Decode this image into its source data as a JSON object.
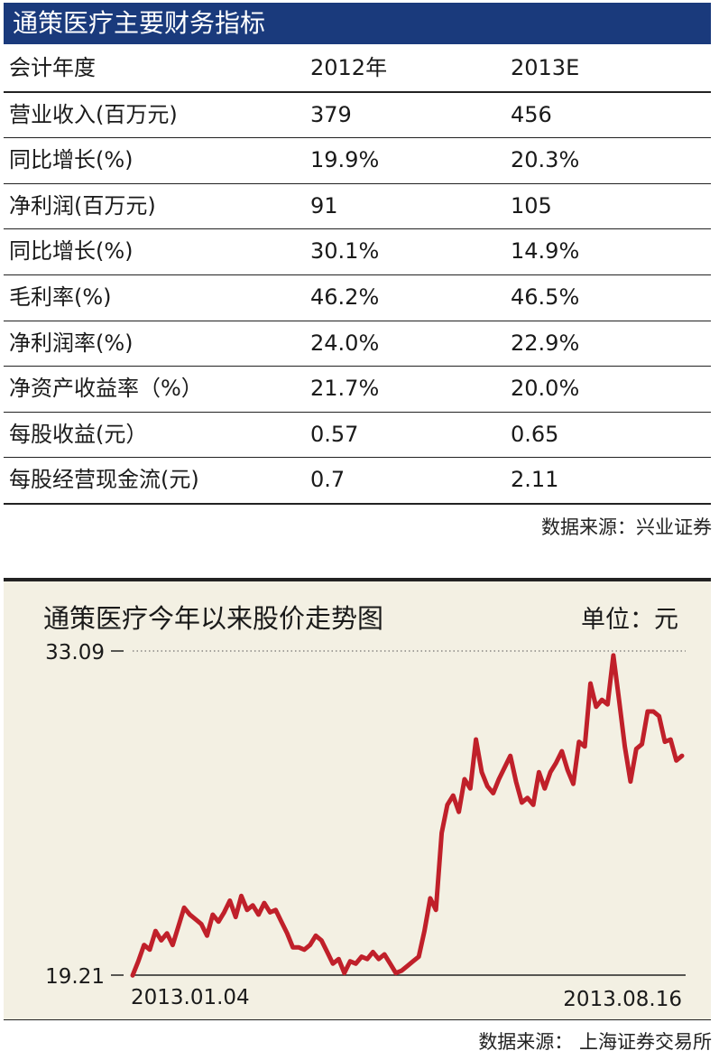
{
  "table": {
    "title": "通策医疗主要财务指标",
    "header": [
      "会计年度",
      "2012年",
      "2013E"
    ],
    "rows": [
      [
        "营业收入(百万元)",
        "379",
        "456"
      ],
      [
        "同比增长(%)",
        "19.9%",
        "20.3%"
      ],
      [
        "净利润(百万元)",
        "91",
        "105"
      ],
      [
        "同比增长(%)",
        "30.1%",
        "14.9%"
      ],
      [
        "毛利率(%)",
        "46.2%",
        "46.5%"
      ],
      [
        "净利润率(%)",
        "24.0%",
        "22.9%"
      ],
      [
        "净资产收益率（%）",
        "21.7%",
        "20.0%"
      ],
      [
        "每股收益(元）",
        "0.57",
        "0.65"
      ],
      [
        "每股经营现金流(元)",
        "0.7",
        "2.11"
      ]
    ],
    "source": "数据来源：兴业证券"
  },
  "chart_data": {
    "type": "line",
    "title": "通策医疗今年以来股价走势图",
    "unit": "单位：元",
    "x_start_label": "2013.01.04",
    "x_end_label": "2013.08.16",
    "ylim": [
      19.21,
      33.09
    ],
    "y_tick_labels": [
      "33.09",
      "19.21"
    ],
    "line_color": "#c0202a",
    "series": [
      {
        "values": [
          19.2,
          19.8,
          20.5,
          20.3,
          21.1,
          20.7,
          21.0,
          20.5,
          21.3,
          22.1,
          21.8,
          21.6,
          21.4,
          20.9,
          21.8,
          21.5,
          21.9,
          22.4,
          21.7,
          22.6,
          22.0,
          22.2,
          21.8,
          22.3,
          21.9,
          22.0,
          21.5,
          21.0,
          20.4,
          20.4,
          20.3,
          20.5,
          20.9,
          20.7,
          20.2,
          19.7,
          19.9,
          19.3,
          19.8,
          19.7,
          20.0,
          19.9,
          20.2,
          19.9,
          20.1,
          19.7,
          19.3,
          19.4,
          19.6,
          19.8,
          20.0,
          21.1,
          22.5,
          22.0,
          25.3,
          26.5,
          26.9,
          26.2,
          27.6,
          27.2,
          29.3,
          27.9,
          27.3,
          27.0,
          27.6,
          28.1,
          28.6,
          27.5,
          26.6,
          26.8,
          26.5,
          27.9,
          27.2,
          27.9,
          28.3,
          28.8,
          28.0,
          27.4,
          29.2,
          29.0,
          31.7,
          30.7,
          31.0,
          30.8,
          32.9,
          31.0,
          29.0,
          27.5,
          28.9,
          29.1,
          30.5,
          30.5,
          30.3,
          29.2,
          29.3,
          28.4,
          28.6
        ]
      }
    ],
    "grid": false,
    "legend": "none",
    "source": "数据来源：  上海证券交易所"
  }
}
